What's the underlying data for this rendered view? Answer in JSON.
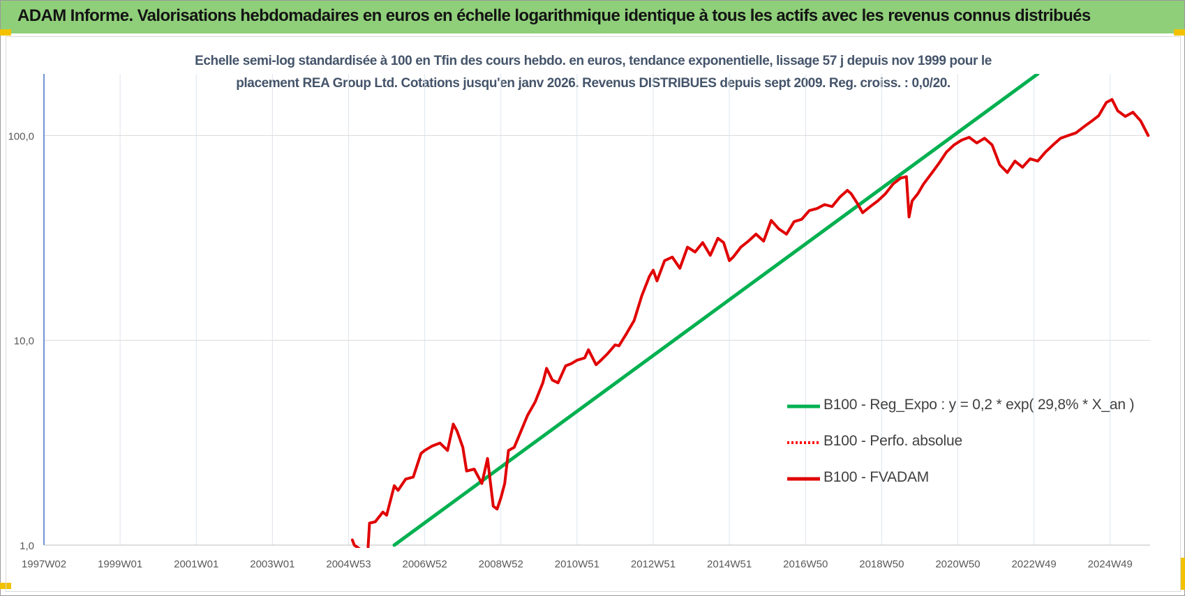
{
  "header": {
    "title": "ADAM Informe. Valorisations hebdomadaires en euros en échelle logarithmique identique à tous les actifs avec les revenus connus distribués"
  },
  "colors": {
    "title_bar": "#8fcf7a",
    "corner": "#f2c200",
    "reg_expo": "#00b050",
    "perfo": "#ff0000",
    "fvadam": "#e00000"
  },
  "chart_data": {
    "type": "line",
    "title_line1": "Echelle semi-log standardisée à 100 en Tfin des cours hebdo. en euros, tendance exponentielle, lissage 57 j depuis nov 1999 pour le",
    "title_line2": "placement REA Group Ltd. Cotations jusqu'en janv 2026. Revenus DISTRIBUES depuis sept 2009. Reg. croiss. : 0,0/20.",
    "y_scale": "log",
    "ylim": [
      1,
      200
    ],
    "y_ticks": [
      1,
      10,
      100
    ],
    "y_tick_labels": [
      "1,0",
      "10,0",
      "100,0"
    ],
    "xlim": [
      1997.0,
      2026.05
    ],
    "x_ticks": [
      1997.0,
      1999.0,
      2001.0,
      2003.0,
      2005.0,
      2007.0,
      2009.0,
      2011.0,
      2013.0,
      2015.0,
      2017.0,
      2019.0,
      2021.0,
      2023.0,
      2025.0
    ],
    "x_tick_labels": [
      "1997W02",
      "1999W01",
      "2001W01",
      "2003W01",
      "2004W53",
      "2006W52",
      "2008W52",
      "2010W51",
      "2012W51",
      "2014W51",
      "2016W50",
      "2018W50",
      "2020W50",
      "2022W49",
      "2024W49"
    ],
    "grid": true,
    "legend_position": "bottom-right",
    "series": [
      {
        "name": "B100 - Reg_Expo : y = 0,2 * exp( 29,8% *  X_an )",
        "style": "solid",
        "x": [
          2006.2,
          2023.1
        ],
        "y": [
          1.0,
          200
        ]
      },
      {
        "name": "B100 - Perfo. absolue",
        "style": "dotted",
        "x": [],
        "y": []
      },
      {
        "name": "B100 - FVADAM",
        "style": "solid",
        "x": [
          2005.1,
          2005.15,
          2005.5,
          2005.55,
          2005.7,
          2005.9,
          2006.0,
          2006.2,
          2006.3,
          2006.5,
          2006.7,
          2006.9,
          2007.0,
          2007.2,
          2007.4,
          2007.6,
          2007.75,
          2007.85,
          2008.0,
          2008.1,
          2008.3,
          2008.5,
          2008.65,
          2008.8,
          2008.9,
          2009.0,
          2009.1,
          2009.2,
          2009.35,
          2009.5,
          2009.7,
          2009.9,
          2010.1,
          2010.2,
          2010.35,
          2010.5,
          2010.7,
          2010.85,
          2011.0,
          2011.2,
          2011.3,
          2011.5,
          2011.6,
          2011.8,
          2012.0,
          2012.1,
          2012.3,
          2012.5,
          2012.7,
          2012.9,
          2013.0,
          2013.1,
          2013.3,
          2013.5,
          2013.7,
          2013.9,
          2014.1,
          2014.3,
          2014.5,
          2014.7,
          2014.85,
          2015.0,
          2015.1,
          2015.3,
          2015.5,
          2015.7,
          2015.9,
          2016.1,
          2016.3,
          2016.5,
          2016.7,
          2016.9,
          2017.1,
          2017.3,
          2017.5,
          2017.7,
          2017.9,
          2018.1,
          2018.2,
          2018.35,
          2018.5,
          2018.7,
          2018.9,
          2019.1,
          2019.3,
          2019.5,
          2019.65,
          2019.72,
          2019.8,
          2019.95,
          2020.1,
          2020.3,
          2020.5,
          2020.7,
          2020.9,
          2021.1,
          2021.3,
          2021.5,
          2021.7,
          2021.9,
          2022.1,
          2022.3,
          2022.5,
          2022.7,
          2022.9,
          2023.1,
          2023.3,
          2023.5,
          2023.7,
          2023.9,
          2024.1,
          2024.3,
          2024.5,
          2024.7,
          2024.9,
          2025.05,
          2025.2,
          2025.4,
          2025.6,
          2025.8,
          2026.0
        ],
        "y": [
          1.06,
          1.0,
          0.9,
          1.28,
          1.3,
          1.45,
          1.4,
          1.95,
          1.85,
          2.1,
          2.15,
          2.8,
          2.9,
          3.05,
          3.15,
          2.9,
          3.9,
          3.6,
          3.0,
          2.3,
          2.35,
          2.0,
          2.65,
          1.55,
          1.5,
          1.7,
          2.0,
          2.9,
          3.0,
          3.5,
          4.3,
          5.0,
          6.2,
          7.3,
          6.4,
          6.2,
          7.5,
          7.7,
          8.0,
          8.2,
          9.0,
          7.6,
          7.9,
          8.6,
          9.5,
          9.4,
          10.8,
          12.5,
          16.5,
          20.5,
          22.0,
          19.5,
          24.5,
          25.5,
          22.5,
          28.5,
          27.0,
          30.0,
          26.0,
          31.5,
          30.0,
          24.5,
          25.5,
          28.5,
          30.5,
          33.0,
          30.5,
          38.5,
          35.0,
          33.0,
          38.0,
          39.0,
          43.0,
          44.0,
          46.0,
          45.0,
          50.0,
          54.0,
          52.0,
          47.0,
          42.0,
          45.0,
          48.0,
          52.0,
          58.0,
          62.0,
          63.0,
          40.0,
          48.0,
          52.0,
          58.0,
          65.0,
          73.0,
          83.0,
          90.0,
          95.0,
          98.0,
          92.0,
          97.0,
          90.0,
          72.0,
          66.0,
          75.0,
          70.0,
          77.0,
          75.0,
          83.0,
          90.0,
          97.0,
          100.0,
          103.0,
          110.0,
          117.0,
          125.0,
          145.0,
          150.0,
          132.0,
          124.0,
          130.0,
          118.0,
          100.0
        ]
      }
    ]
  }
}
